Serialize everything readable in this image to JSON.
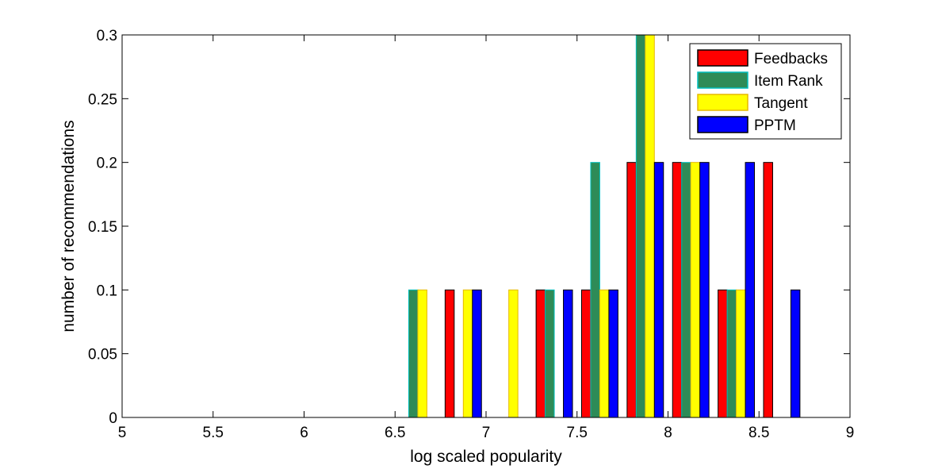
{
  "chart_data": {
    "type": "bar",
    "title": "",
    "xlabel": "log scaled popularity",
    "ylabel": "number of recommendations",
    "xlim": [
      5,
      9
    ],
    "ylim": [
      0,
      0.3
    ],
    "xticks": [
      "5",
      "5.5",
      "6",
      "6.5",
      "7",
      "7.5",
      "8",
      "8.5",
      "9"
    ],
    "yticks": [
      "0",
      "0.05",
      "0.1",
      "0.15",
      "0.2",
      "0.25",
      "0.3"
    ],
    "grid": false,
    "legend_position": "top-right",
    "bin_centers": [
      5.125,
      5.375,
      5.625,
      5.875,
      6.125,
      6.375,
      6.625,
      6.875,
      7.125,
      7.375,
      7.625,
      7.875,
      8.125,
      8.375,
      8.625,
      8.875
    ],
    "series": [
      {
        "name": "Feedbacks",
        "color": "#ff0000",
        "values": [
          0,
          0,
          0,
          0,
          0,
          0,
          0,
          0.1,
          0,
          0.1,
          0.1,
          0.2,
          0.2,
          0.1,
          0.2,
          0
        ]
      },
      {
        "name": "Item Rank",
        "color": "#2e8b57",
        "values": [
          0,
          0,
          0,
          0,
          0,
          0,
          0.1,
          0,
          0,
          0.1,
          0.2,
          0.3,
          0.2,
          0.1,
          0,
          0
        ]
      },
      {
        "name": "Tangent",
        "color": "#ffff00",
        "values": [
          0,
          0,
          0,
          0,
          0,
          0,
          0.1,
          0.1,
          0.1,
          0,
          0.1,
          0.3,
          0.2,
          0.1,
          0,
          0
        ]
      },
      {
        "name": "PPTM",
        "color": "#0000ff",
        "values": [
          0,
          0,
          0,
          0,
          0,
          0,
          0,
          0.1,
          0,
          0.1,
          0.1,
          0.2,
          0.2,
          0.2,
          0.1,
          0
        ]
      }
    ],
    "edge_colors": {
      "Item Rank": "#00bfbf",
      "Tangent": "#e6b800",
      "default": "#000000"
    }
  }
}
